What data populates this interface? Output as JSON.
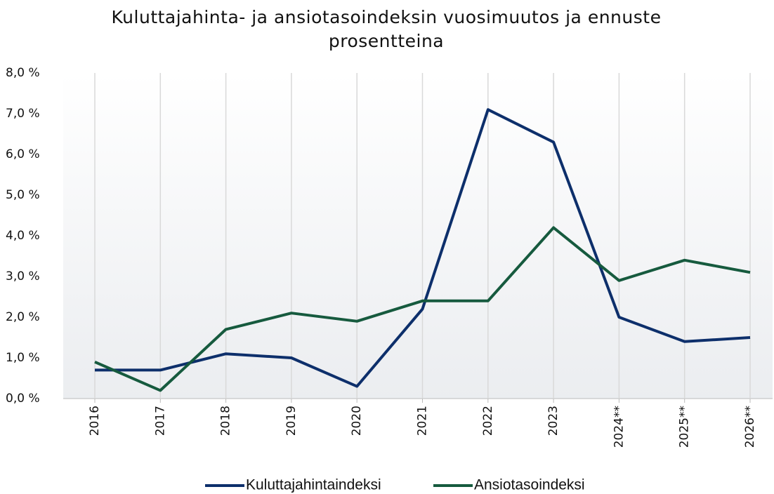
{
  "chart_data": {
    "type": "line",
    "title": "Kuluttajahinta- ja ansiotasoindeksin vuosimuutos ja ennuste prosentteina",
    "categories": [
      "2016",
      "2017",
      "2018",
      "2019",
      "2020",
      "2021",
      "2022",
      "2023",
      "2024**",
      "2025**",
      "2026**"
    ],
    "series": [
      {
        "name": "Kuluttajahintaindeksi",
        "color": "#0d2f6b",
        "values": [
          0.7,
          0.7,
          1.1,
          1.0,
          0.3,
          2.2,
          7.1,
          6.3,
          2.0,
          1.4,
          1.5
        ]
      },
      {
        "name": "Ansiotasoindeksi",
        "color": "#165a3e",
        "values": [
          0.9,
          0.2,
          1.7,
          2.1,
          1.9,
          2.4,
          2.4,
          4.2,
          2.9,
          3.4,
          3.1
        ]
      }
    ],
    "ylim": [
      0,
      8
    ],
    "yticks": [
      {
        "value": 0,
        "label": "0,0 %"
      },
      {
        "value": 1,
        "label": "1,0 %"
      },
      {
        "value": 2,
        "label": "2,0 %"
      },
      {
        "value": 3,
        "label": "3,0 %"
      },
      {
        "value": 4,
        "label": "4,0 %"
      },
      {
        "value": 5,
        "label": "5,0 %"
      },
      {
        "value": 6,
        "label": "6,0 %"
      },
      {
        "value": 7,
        "label": "7,0 %"
      },
      {
        "value": 8,
        "label": "8,0 %"
      }
    ],
    "grid": true,
    "legend": "bottom"
  }
}
